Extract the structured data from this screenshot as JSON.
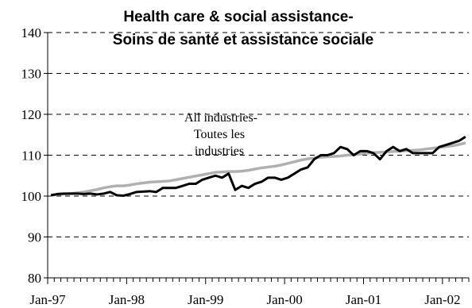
{
  "chart_data": {
    "type": "line",
    "title_line1": "Health care & social assistance-",
    "title_line2": "Soins de santé et assistance sociale",
    "xlabel": "",
    "ylabel": "",
    "ylim": [
      80,
      140
    ],
    "yticks": [
      80,
      90,
      100,
      110,
      120,
      130,
      140
    ],
    "ytick_labels": [
      "80",
      "90",
      "100",
      "110",
      "120",
      "130",
      "140"
    ],
    "xtick_labels": [
      "Jan-97",
      "Jan-98",
      "Jan-99",
      "Jan-00",
      "Jan-01",
      "Jan-02"
    ],
    "grid": "horizontal dashed",
    "annotation": [
      "All industries-",
      "Toutes les",
      "industries"
    ],
    "months": 64,
    "series": [
      {
        "name": "Health care & social assistance",
        "color": "#000000",
        "values": [
          100.2,
          100.5,
          100.6,
          100.6,
          100.6,
          100.5,
          100.6,
          100.4,
          100.6,
          101.0,
          100.2,
          100.1,
          100.5,
          101.0,
          101.1,
          101.2,
          101.0,
          102.0,
          102.0,
          102.0,
          102.5,
          103.0,
          103.0,
          104.0,
          104.5,
          105.0,
          104.5,
          105.5,
          101.5,
          102.5,
          102.0,
          103.0,
          103.5,
          104.5,
          104.5,
          104.0,
          104.5,
          105.5,
          106.5,
          107.0,
          109.0,
          110.0,
          110.0,
          110.5,
          112.0,
          111.5,
          110.0,
          111.0,
          111.0,
          110.5,
          109.0,
          111.0,
          112.0,
          111.0,
          111.5,
          110.5,
          110.5,
          110.5,
          110.5,
          112.0,
          112.5,
          113.0,
          113.5,
          114.5
        ]
      },
      {
        "name": "All industries-Toutes les industries",
        "color": "#b0b0b0",
        "values": [
          100.2,
          100.4,
          100.5,
          100.6,
          100.8,
          101.0,
          101.3,
          101.6,
          102.0,
          102.3,
          102.5,
          102.5,
          102.7,
          103.0,
          103.2,
          103.4,
          103.5,
          103.6,
          103.7,
          104.0,
          104.3,
          104.6,
          104.9,
          105.2,
          105.5,
          105.8,
          105.9,
          106.0,
          106.0,
          106.1,
          106.3,
          106.6,
          106.9,
          107.1,
          107.3,
          107.6,
          108.0,
          108.4,
          108.8,
          109.1,
          109.3,
          109.5,
          109.6,
          109.7,
          109.8,
          110.0,
          110.1,
          110.3,
          110.5,
          110.6,
          110.7,
          110.8,
          110.9,
          111.0,
          111.1,
          111.2,
          111.3,
          111.5,
          111.7,
          111.9,
          112.1,
          112.3,
          112.6,
          113.0
        ]
      }
    ]
  }
}
